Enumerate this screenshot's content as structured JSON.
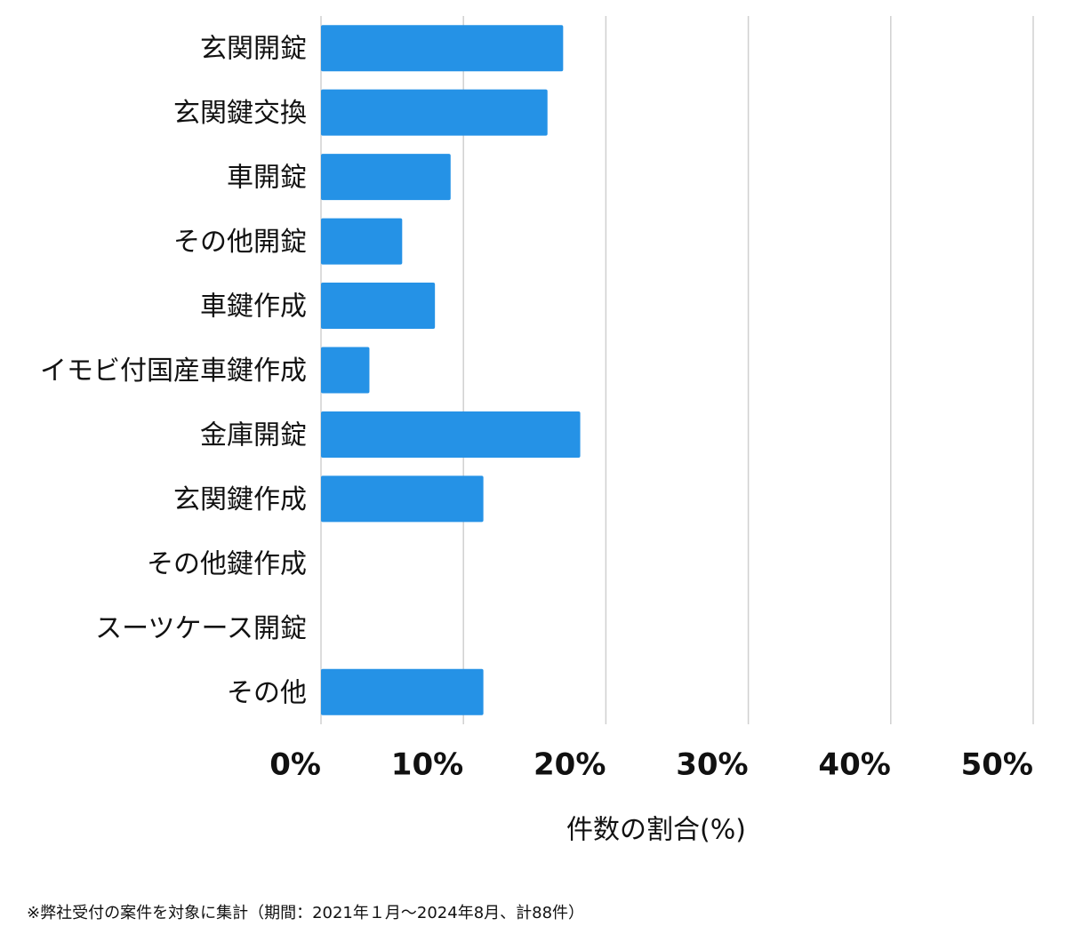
{
  "chart_data": {
    "type": "bar",
    "orientation": "horizontal",
    "categories": [
      "玄関開錠",
      "玄関鍵交換",
      "車開錠",
      "その他開錠",
      "車鍵作成",
      "イモビ付国産車鍵作成",
      "金庫開錠",
      "玄関鍵作成",
      "その他鍵作成",
      "スーツケース開錠",
      "その他"
    ],
    "values": [
      17.0,
      15.9,
      9.1,
      5.7,
      8.0,
      3.4,
      18.2,
      11.4,
      0,
      0,
      11.4
    ],
    "color": "#2592e6",
    "xlim": [
      0,
      50
    ],
    "xticks": [
      {
        "value": 0,
        "label": "0%"
      },
      {
        "value": 10,
        "label": "10%"
      },
      {
        "value": 20,
        "label": "20%"
      },
      {
        "value": 30,
        "label": "30%"
      },
      {
        "value": 40,
        "label": "40%"
      },
      {
        "value": 50,
        "label": "50%"
      }
    ],
    "grid": true,
    "x_label": "件数の割合(%)",
    "footnote": "※弊社受付の案件を対象に集計（期間：2021年１月〜2024年8月、計88件）"
  }
}
